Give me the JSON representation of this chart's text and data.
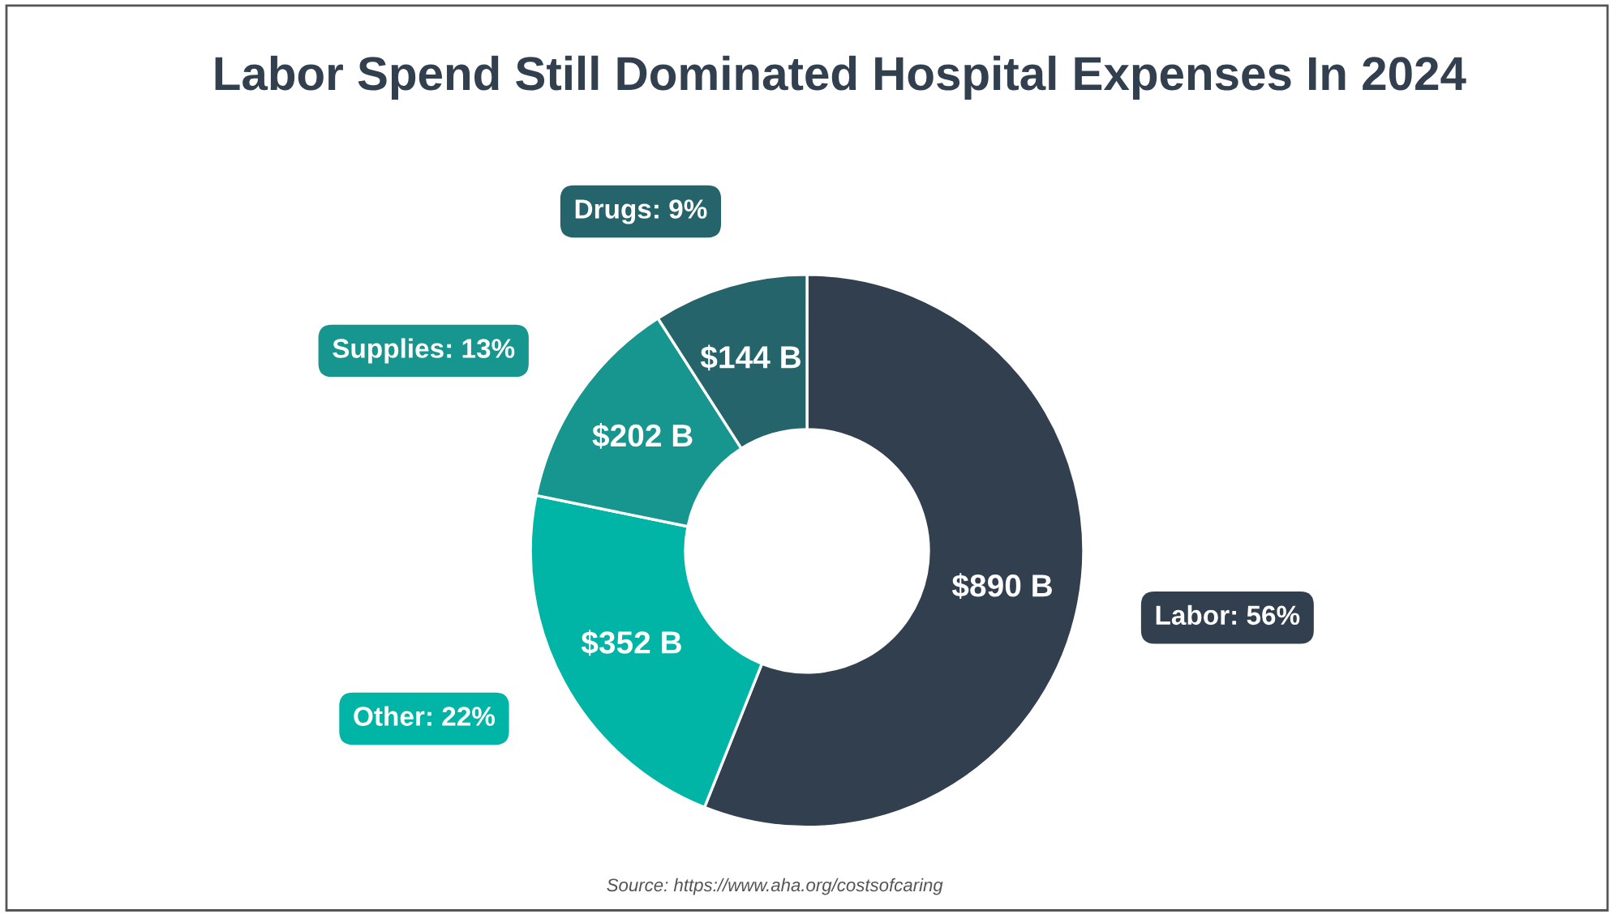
{
  "chart_data": {
    "type": "donut",
    "title": "Labor Spend Still Dominated Hospital Expenses In 2024",
    "categories": [
      "Labor: 56%",
      "Other: 22%",
      "Supplies: 13%",
      "Drugs: 9%"
    ],
    "values": [
      890,
      352,
      202,
      144
    ],
    "value_labels": [
      "$890 B",
      "$352 B",
      "$202 B",
      "$144 B"
    ],
    "colors": [
      "#323f4f",
      "#00b5a5",
      "#17968f",
      "#26646b"
    ],
    "annotations": [
      "Source: https://www.aha.org/costsofcaring"
    ]
  }
}
